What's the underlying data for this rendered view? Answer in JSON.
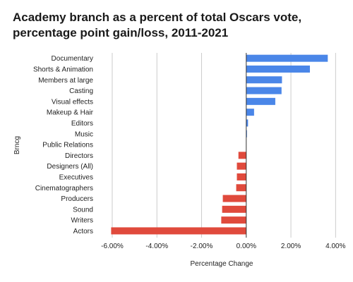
{
  "chart_data": {
    "type": "bar",
    "orientation": "horizontal",
    "title": "Academy branch as a percent of total Oscars vote, percentage point gain/loss, 2011-2021",
    "xlabel": "Percentage Change",
    "ylabel": "Brncg",
    "categories": [
      "Documentary",
      "Shorts & Animation",
      "Members at large",
      "Casting",
      "Visual effects",
      "Makeup & Hair",
      "Editors",
      "Music",
      "Public Relations",
      "Directors",
      "Designers (All)",
      "Executives",
      "Cinematographers",
      "Producers",
      "Sound",
      "Writers",
      "Actors"
    ],
    "values": [
      3.65,
      2.85,
      1.6,
      1.58,
      1.3,
      0.35,
      0.08,
      0.03,
      0.0,
      -0.35,
      -0.42,
      -0.42,
      -0.45,
      -1.05,
      -1.08,
      -1.12,
      -6.05
    ],
    "xlim": [
      -6.6,
      4.4
    ],
    "xticks": [
      -6,
      -4,
      -2,
      0,
      2,
      4
    ],
    "xtick_labels": [
      "-6.00%",
      "-4.00%",
      "-2.00%",
      "0.00%",
      "2.00%",
      "4.00%"
    ],
    "grid": "vertical",
    "colors": {
      "positive": "#4a86e8",
      "negative": "#e04a3c",
      "grid": "#cccccc",
      "zero_line": "#333333"
    }
  }
}
